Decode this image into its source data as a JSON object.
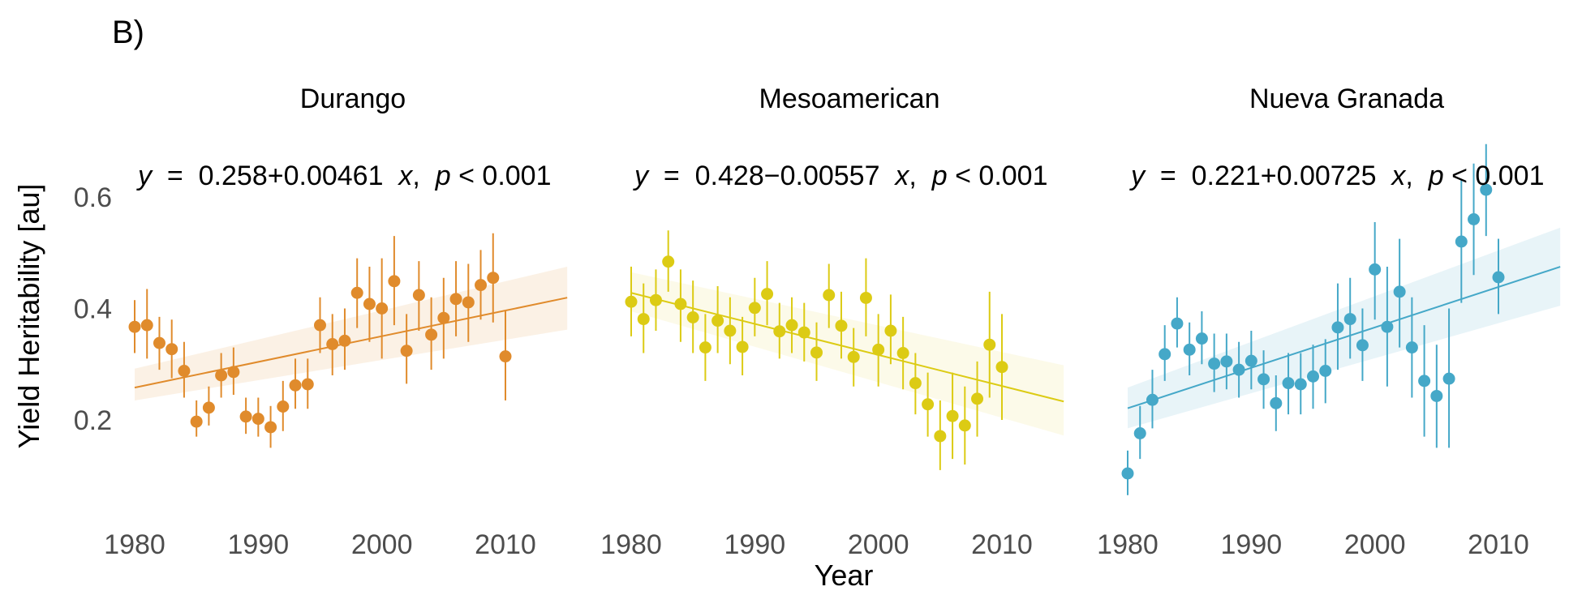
{
  "panel_label": "B)",
  "chart_data": {
    "type": "scatter",
    "xlabel": "Year",
    "ylabel": "Yield Heritability [au]",
    "xlim": [
      1978,
      2016
    ],
    "ylim": [
      0.05,
      0.7
    ],
    "xticks": [
      1980,
      1990,
      2000,
      2010
    ],
    "yticks": [
      0.2,
      0.4,
      0.6
    ],
    "xtick_labels": [
      "1980",
      "1990",
      "2000",
      "2010"
    ],
    "ytick_labels": [
      "0.2",
      "0.4",
      "0.6"
    ],
    "grid": false,
    "facets": [
      {
        "name": "Durango",
        "color": "#E08B2C",
        "ribbon_color": "#E08B2C",
        "equation": {
          "intercept": "0.258",
          "sign": "+",
          "slope": "0.00461",
          "p": "0.001"
        },
        "fit": {
          "x0": 1980,
          "x1": 2015,
          "intercept": 0.258,
          "slope": 0.00461
        },
        "ribbon": {
          "lo_start": 0.235,
          "hi_start": 0.292,
          "lo_end": 0.362,
          "hi_end": 0.475
        },
        "points": [
          {
            "x": 1980,
            "y": 0.367,
            "lo": 0.32,
            "hi": 0.415
          },
          {
            "x": 1981,
            "y": 0.37,
            "lo": 0.31,
            "hi": 0.435
          },
          {
            "x": 1982,
            "y": 0.338,
            "lo": 0.29,
            "hi": 0.385
          },
          {
            "x": 1983,
            "y": 0.327,
            "lo": 0.275,
            "hi": 0.38
          },
          {
            "x": 1984,
            "y": 0.288,
            "lo": 0.24,
            "hi": 0.34
          },
          {
            "x": 1985,
            "y": 0.197,
            "lo": 0.17,
            "hi": 0.235
          },
          {
            "x": 1986,
            "y": 0.222,
            "lo": 0.19,
            "hi": 0.26
          },
          {
            "x": 1987,
            "y": 0.28,
            "lo": 0.24,
            "hi": 0.32
          },
          {
            "x": 1988,
            "y": 0.286,
            "lo": 0.245,
            "hi": 0.33
          },
          {
            "x": 1989,
            "y": 0.206,
            "lo": 0.175,
            "hi": 0.24
          },
          {
            "x": 1990,
            "y": 0.202,
            "lo": 0.17,
            "hi": 0.24
          },
          {
            "x": 1991,
            "y": 0.187,
            "lo": 0.15,
            "hi": 0.225
          },
          {
            "x": 1992,
            "y": 0.224,
            "lo": 0.18,
            "hi": 0.27
          },
          {
            "x": 1993,
            "y": 0.262,
            "lo": 0.22,
            "hi": 0.31
          },
          {
            "x": 1994,
            "y": 0.264,
            "lo": 0.22,
            "hi": 0.31
          },
          {
            "x": 1995,
            "y": 0.37,
            "lo": 0.32,
            "hi": 0.42
          },
          {
            "x": 1996,
            "y": 0.336,
            "lo": 0.28,
            "hi": 0.39
          },
          {
            "x": 1997,
            "y": 0.342,
            "lo": 0.29,
            "hi": 0.4
          },
          {
            "x": 1998,
            "y": 0.428,
            "lo": 0.365,
            "hi": 0.49
          },
          {
            "x": 1999,
            "y": 0.408,
            "lo": 0.34,
            "hi": 0.475
          },
          {
            "x": 2000,
            "y": 0.4,
            "lo": 0.31,
            "hi": 0.49
          },
          {
            "x": 2001,
            "y": 0.449,
            "lo": 0.37,
            "hi": 0.53
          },
          {
            "x": 2002,
            "y": 0.324,
            "lo": 0.265,
            "hi": 0.39
          },
          {
            "x": 2003,
            "y": 0.424,
            "lo": 0.36,
            "hi": 0.485
          },
          {
            "x": 2004,
            "y": 0.353,
            "lo": 0.29,
            "hi": 0.42
          },
          {
            "x": 2005,
            "y": 0.383,
            "lo": 0.31,
            "hi": 0.455
          },
          {
            "x": 2006,
            "y": 0.417,
            "lo": 0.35,
            "hi": 0.485
          },
          {
            "x": 2007,
            "y": 0.411,
            "lo": 0.34,
            "hi": 0.48
          },
          {
            "x": 2008,
            "y": 0.442,
            "lo": 0.38,
            "hi": 0.505
          },
          {
            "x": 2009,
            "y": 0.455,
            "lo": 0.375,
            "hi": 0.535
          },
          {
            "x": 2010,
            "y": 0.314,
            "lo": 0.235,
            "hi": 0.395
          }
        ]
      },
      {
        "name": "Mesoamerican",
        "color": "#DCCB14",
        "ribbon_color": "#E8D94A",
        "equation": {
          "intercept": "0.428",
          "sign": "−",
          "slope": "0.00557",
          "p": "0.001"
        },
        "fit": {
          "x0": 1980,
          "x1": 2015,
          "intercept": 0.428,
          "slope": -0.00557
        },
        "ribbon": {
          "lo_start": 0.395,
          "hi_start": 0.465,
          "lo_end": 0.172,
          "hi_end": 0.298
        },
        "points": [
          {
            "x": 1980,
            "y": 0.412,
            "lo": 0.35,
            "hi": 0.475
          },
          {
            "x": 1981,
            "y": 0.381,
            "lo": 0.32,
            "hi": 0.445
          },
          {
            "x": 1982,
            "y": 0.415,
            "lo": 0.36,
            "hi": 0.47
          },
          {
            "x": 1983,
            "y": 0.484,
            "lo": 0.43,
            "hi": 0.54
          },
          {
            "x": 1984,
            "y": 0.408,
            "lo": 0.34,
            "hi": 0.47
          },
          {
            "x": 1985,
            "y": 0.384,
            "lo": 0.32,
            "hi": 0.45
          },
          {
            "x": 1986,
            "y": 0.33,
            "lo": 0.27,
            "hi": 0.39
          },
          {
            "x": 1987,
            "y": 0.378,
            "lo": 0.32,
            "hi": 0.44
          },
          {
            "x": 1988,
            "y": 0.36,
            "lo": 0.3,
            "hi": 0.42
          },
          {
            "x": 1989,
            "y": 0.331,
            "lo": 0.28,
            "hi": 0.385
          },
          {
            "x": 1990,
            "y": 0.401,
            "lo": 0.35,
            "hi": 0.455
          },
          {
            "x": 1991,
            "y": 0.426,
            "lo": 0.37,
            "hi": 0.485
          },
          {
            "x": 1992,
            "y": 0.359,
            "lo": 0.31,
            "hi": 0.41
          },
          {
            "x": 1993,
            "y": 0.37,
            "lo": 0.32,
            "hi": 0.42
          },
          {
            "x": 1994,
            "y": 0.357,
            "lo": 0.305,
            "hi": 0.41
          },
          {
            "x": 1995,
            "y": 0.321,
            "lo": 0.27,
            "hi": 0.375
          },
          {
            "x": 1996,
            "y": 0.424,
            "lo": 0.365,
            "hi": 0.48
          },
          {
            "x": 1997,
            "y": 0.369,
            "lo": 0.31,
            "hi": 0.43
          },
          {
            "x": 1998,
            "y": 0.313,
            "lo": 0.26,
            "hi": 0.365
          },
          {
            "x": 1999,
            "y": 0.419,
            "lo": 0.35,
            "hi": 0.49
          },
          {
            "x": 2000,
            "y": 0.326,
            "lo": 0.26,
            "hi": 0.39
          },
          {
            "x": 2001,
            "y": 0.36,
            "lo": 0.3,
            "hi": 0.425
          },
          {
            "x": 2002,
            "y": 0.32,
            "lo": 0.255,
            "hi": 0.385
          },
          {
            "x": 2003,
            "y": 0.266,
            "lo": 0.21,
            "hi": 0.32
          },
          {
            "x": 2004,
            "y": 0.228,
            "lo": 0.17,
            "hi": 0.285
          },
          {
            "x": 2005,
            "y": 0.171,
            "lo": 0.11,
            "hi": 0.235
          },
          {
            "x": 2006,
            "y": 0.207,
            "lo": 0.13,
            "hi": 0.285
          },
          {
            "x": 2007,
            "y": 0.19,
            "lo": 0.12,
            "hi": 0.26
          },
          {
            "x": 2008,
            "y": 0.238,
            "lo": 0.17,
            "hi": 0.305
          },
          {
            "x": 2009,
            "y": 0.335,
            "lo": 0.24,
            "hi": 0.43
          },
          {
            "x": 2010,
            "y": 0.295,
            "lo": 0.2,
            "hi": 0.39
          }
        ]
      },
      {
        "name": "Nueva Granada",
        "color": "#45A8C8",
        "ribbon_color": "#45A8C8",
        "equation": {
          "intercept": "0.221",
          "sign": "+",
          "slope": "0.00725",
          "p": "0.001"
        },
        "fit": {
          "x0": 1980,
          "x1": 2015,
          "intercept": 0.221,
          "slope": 0.00725
        },
        "ribbon": {
          "lo_start": 0.185,
          "hi_start": 0.258,
          "lo_end": 0.405,
          "hi_end": 0.545
        },
        "points": [
          {
            "x": 1980,
            "y": 0.104,
            "lo": 0.065,
            "hi": 0.145
          },
          {
            "x": 1981,
            "y": 0.176,
            "lo": 0.13,
            "hi": 0.225
          },
          {
            "x": 1982,
            "y": 0.236,
            "lo": 0.185,
            "hi": 0.29
          },
          {
            "x": 1983,
            "y": 0.318,
            "lo": 0.27,
            "hi": 0.37
          },
          {
            "x": 1984,
            "y": 0.373,
            "lo": 0.33,
            "hi": 0.42
          },
          {
            "x": 1985,
            "y": 0.326,
            "lo": 0.28,
            "hi": 0.375
          },
          {
            "x": 1986,
            "y": 0.346,
            "lo": 0.3,
            "hi": 0.395
          },
          {
            "x": 1987,
            "y": 0.301,
            "lo": 0.25,
            "hi": 0.355
          },
          {
            "x": 1988,
            "y": 0.305,
            "lo": 0.255,
            "hi": 0.355
          },
          {
            "x": 1989,
            "y": 0.29,
            "lo": 0.24,
            "hi": 0.34
          },
          {
            "x": 1990,
            "y": 0.306,
            "lo": 0.255,
            "hi": 0.36
          },
          {
            "x": 1991,
            "y": 0.273,
            "lo": 0.22,
            "hi": 0.325
          },
          {
            "x": 1992,
            "y": 0.23,
            "lo": 0.18,
            "hi": 0.28
          },
          {
            "x": 1993,
            "y": 0.266,
            "lo": 0.21,
            "hi": 0.32
          },
          {
            "x": 1994,
            "y": 0.264,
            "lo": 0.21,
            "hi": 0.32
          },
          {
            "x": 1995,
            "y": 0.278,
            "lo": 0.22,
            "hi": 0.335
          },
          {
            "x": 1996,
            "y": 0.288,
            "lo": 0.23,
            "hi": 0.345
          },
          {
            "x": 1997,
            "y": 0.366,
            "lo": 0.29,
            "hi": 0.445
          },
          {
            "x": 1998,
            "y": 0.381,
            "lo": 0.31,
            "hi": 0.455
          },
          {
            "x": 1999,
            "y": 0.334,
            "lo": 0.27,
            "hi": 0.4
          },
          {
            "x": 2000,
            "y": 0.47,
            "lo": 0.38,
            "hi": 0.555
          },
          {
            "x": 2001,
            "y": 0.367,
            "lo": 0.26,
            "hi": 0.475
          },
          {
            "x": 2002,
            "y": 0.43,
            "lo": 0.33,
            "hi": 0.525
          },
          {
            "x": 2003,
            "y": 0.33,
            "lo": 0.24,
            "hi": 0.42
          },
          {
            "x": 2004,
            "y": 0.27,
            "lo": 0.17,
            "hi": 0.37
          },
          {
            "x": 2005,
            "y": 0.243,
            "lo": 0.15,
            "hi": 0.335
          },
          {
            "x": 2006,
            "y": 0.274,
            "lo": 0.15,
            "hi": 0.4
          },
          {
            "x": 2007,
            "y": 0.52,
            "lo": 0.41,
            "hi": 0.63
          },
          {
            "x": 2008,
            "y": 0.56,
            "lo": 0.46,
            "hi": 0.66
          },
          {
            "x": 2009,
            "y": 0.613,
            "lo": 0.53,
            "hi": 0.695
          },
          {
            "x": 2010,
            "y": 0.456,
            "lo": 0.39,
            "hi": 0.525
          }
        ]
      }
    ]
  }
}
